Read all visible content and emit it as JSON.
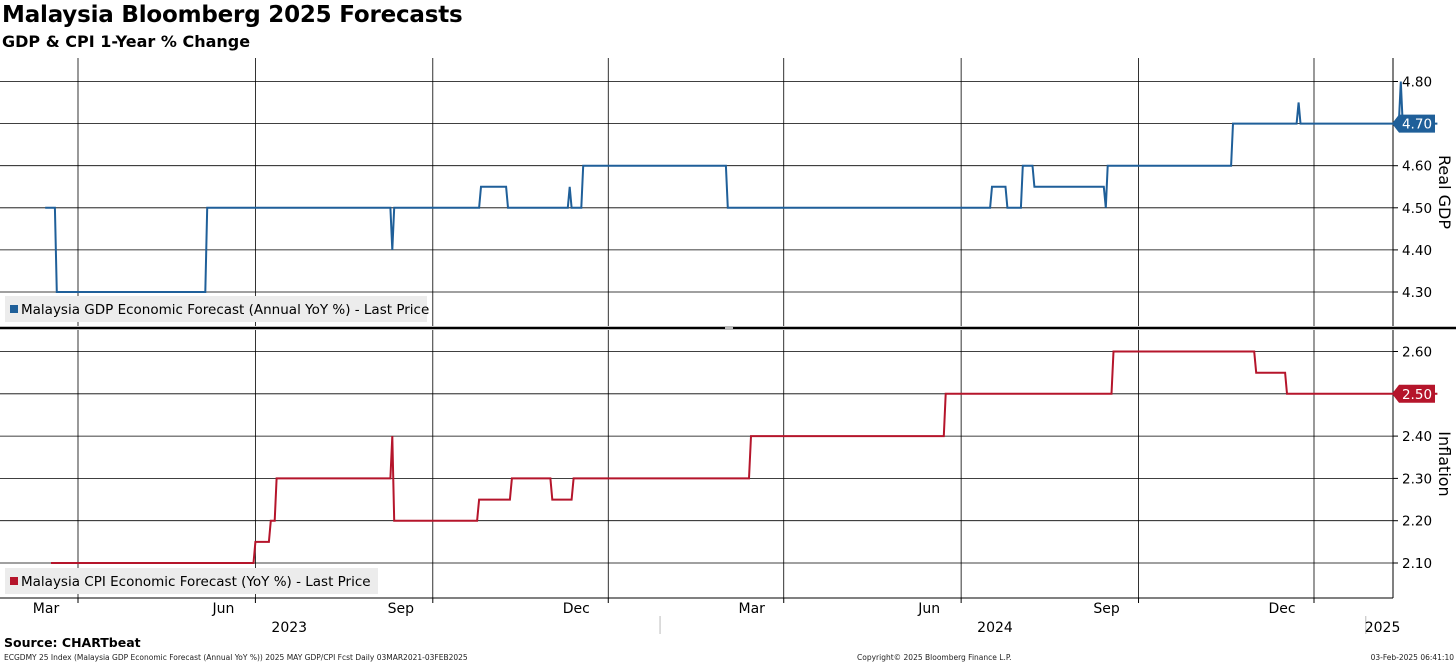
{
  "header": {
    "title": "Malaysia Bloomberg 2025 Forecasts",
    "subtitle": "GDP & CPI 1-Year % Change"
  },
  "footer": {
    "source": "Source: CHARTbeat",
    "left_text": "ECGDMY 25 Index (Malaysia GDP Economic Forecast (Annual YoY %)) 2025 MAY GDP/CPI Fcst  Daily 03MAR2021-03FEB2025",
    "center_text": "Copyright© 2025 Bloomberg Finance L.P.",
    "right_text": "03-Feb-2025 06:41:10"
  },
  "colors": {
    "gdp_line": "#1f5f99",
    "cpi_line": "#b5152b",
    "grid": "#000000",
    "legend_bg": "#ececec"
  },
  "chart_data": [
    {
      "type": "line",
      "panel": "top",
      "ylabel": "Real GDP",
      "ylim": [
        4.22,
        4.86
      ],
      "yticks": [
        4.3,
        4.4,
        4.5,
        4.6,
        4.7,
        4.8
      ],
      "ytick_labels": [
        "4.30",
        "4.40",
        "4.50",
        "4.60",
        "4.70",
        "4.80"
      ],
      "last_value_label": "4.70",
      "legend_placement": "bottom-left",
      "grid": true,
      "series": [
        {
          "name": "Malaysia GDP Economic Forecast (Annual YoY %) - Last Price",
          "x": [
            "2023-02-12",
            "2023-02-17",
            "2023-02-18",
            "2023-05-06",
            "2023-05-07",
            "2023-08-10",
            "2023-08-11",
            "2023-08-12",
            "2023-09-25",
            "2023-09-26",
            "2023-10-09",
            "2023-10-10",
            "2023-11-10",
            "2023-11-11",
            "2023-11-12",
            "2023-11-17",
            "2023-11-18",
            "2024-01-31",
            "2024-02-01",
            "2024-06-16",
            "2024-06-17",
            "2024-06-24",
            "2024-06-25",
            "2024-07-02",
            "2024-07-03",
            "2024-07-08",
            "2024-07-09",
            "2024-08-14",
            "2024-08-15",
            "2024-08-16",
            "2024-10-19",
            "2024-10-20",
            "2024-11-22",
            "2024-11-23",
            "2024-11-24",
            "2025-01-14",
            "2025-01-15",
            "2025-01-16",
            "2025-02-03"
          ],
          "values": [
            4.5,
            4.5,
            4.3,
            4.3,
            4.5,
            4.5,
            4.4,
            4.5,
            4.5,
            4.55,
            4.55,
            4.5,
            4.5,
            4.55,
            4.5,
            4.5,
            4.6,
            4.6,
            4.5,
            4.5,
            4.55,
            4.55,
            4.5,
            4.5,
            4.6,
            4.6,
            4.55,
            4.55,
            4.5,
            4.6,
            4.6,
            4.7,
            4.7,
            4.75,
            4.7,
            4.7,
            4.8,
            4.7,
            4.7
          ]
        }
      ]
    },
    {
      "type": "line",
      "panel": "bottom",
      "ylabel": "Inflation",
      "ylim": [
        2.02,
        2.64
      ],
      "yticks": [
        2.1,
        2.2,
        2.3,
        2.4,
        2.5,
        2.6
      ],
      "ytick_labels": [
        "2.10",
        "2.20",
        "2.30",
        "2.40",
        "2.50",
        "2.60"
      ],
      "last_value_label": "2.50",
      "legend_placement": "bottom-left",
      "grid": true,
      "series": [
        {
          "name": "Malaysia CPI Economic Forecast (YoY %) - Last Price",
          "x": [
            "2023-02-15",
            "2023-05-31",
            "2023-06-01",
            "2023-06-08",
            "2023-06-09",
            "2023-06-11",
            "2023-06-12",
            "2023-08-10",
            "2023-08-11",
            "2023-08-12",
            "2023-09-24",
            "2023-09-25",
            "2023-10-11",
            "2023-10-12",
            "2023-11-01",
            "2023-11-02",
            "2023-11-12",
            "2023-11-13",
            "2024-02-12",
            "2024-02-13",
            "2024-05-23",
            "2024-05-24",
            "2024-08-18",
            "2024-08-19",
            "2024-10-31",
            "2024-11-01",
            "2024-11-16",
            "2024-11-17",
            "2025-02-03"
          ],
          "values": [
            2.1,
            2.1,
            2.15,
            2.15,
            2.2,
            2.2,
            2.3,
            2.3,
            2.4,
            2.2,
            2.2,
            2.25,
            2.25,
            2.3,
            2.3,
            2.25,
            2.25,
            2.3,
            2.3,
            2.4,
            2.4,
            2.5,
            2.5,
            2.6,
            2.6,
            2.55,
            2.55,
            2.5,
            2.5
          ]
        }
      ]
    }
  ],
  "x_axis": {
    "month_labels": [
      {
        "label": "Mar",
        "date": "2023-03-01"
      },
      {
        "label": "Jun",
        "date": "2023-06-01"
      },
      {
        "label": "Sep",
        "date": "2023-09-01"
      },
      {
        "label": "Dec",
        "date": "2023-12-01"
      },
      {
        "label": "Mar",
        "date": "2024-03-01"
      },
      {
        "label": "Jun",
        "date": "2024-06-01"
      },
      {
        "label": "Sep",
        "date": "2024-09-01"
      },
      {
        "label": "Dec",
        "date": "2024-12-01"
      }
    ],
    "year_labels": [
      {
        "label": "2023",
        "date": "2023-07-01"
      },
      {
        "label": "2024",
        "date": "2024-07-01"
      },
      {
        "label": "2025",
        "date": "2025-01-18"
      }
    ],
    "year_breaks": [
      "2024-01-01",
      "2025-01-01"
    ],
    "xlim": [
      "2023-02-11",
      "2025-02-10"
    ]
  }
}
